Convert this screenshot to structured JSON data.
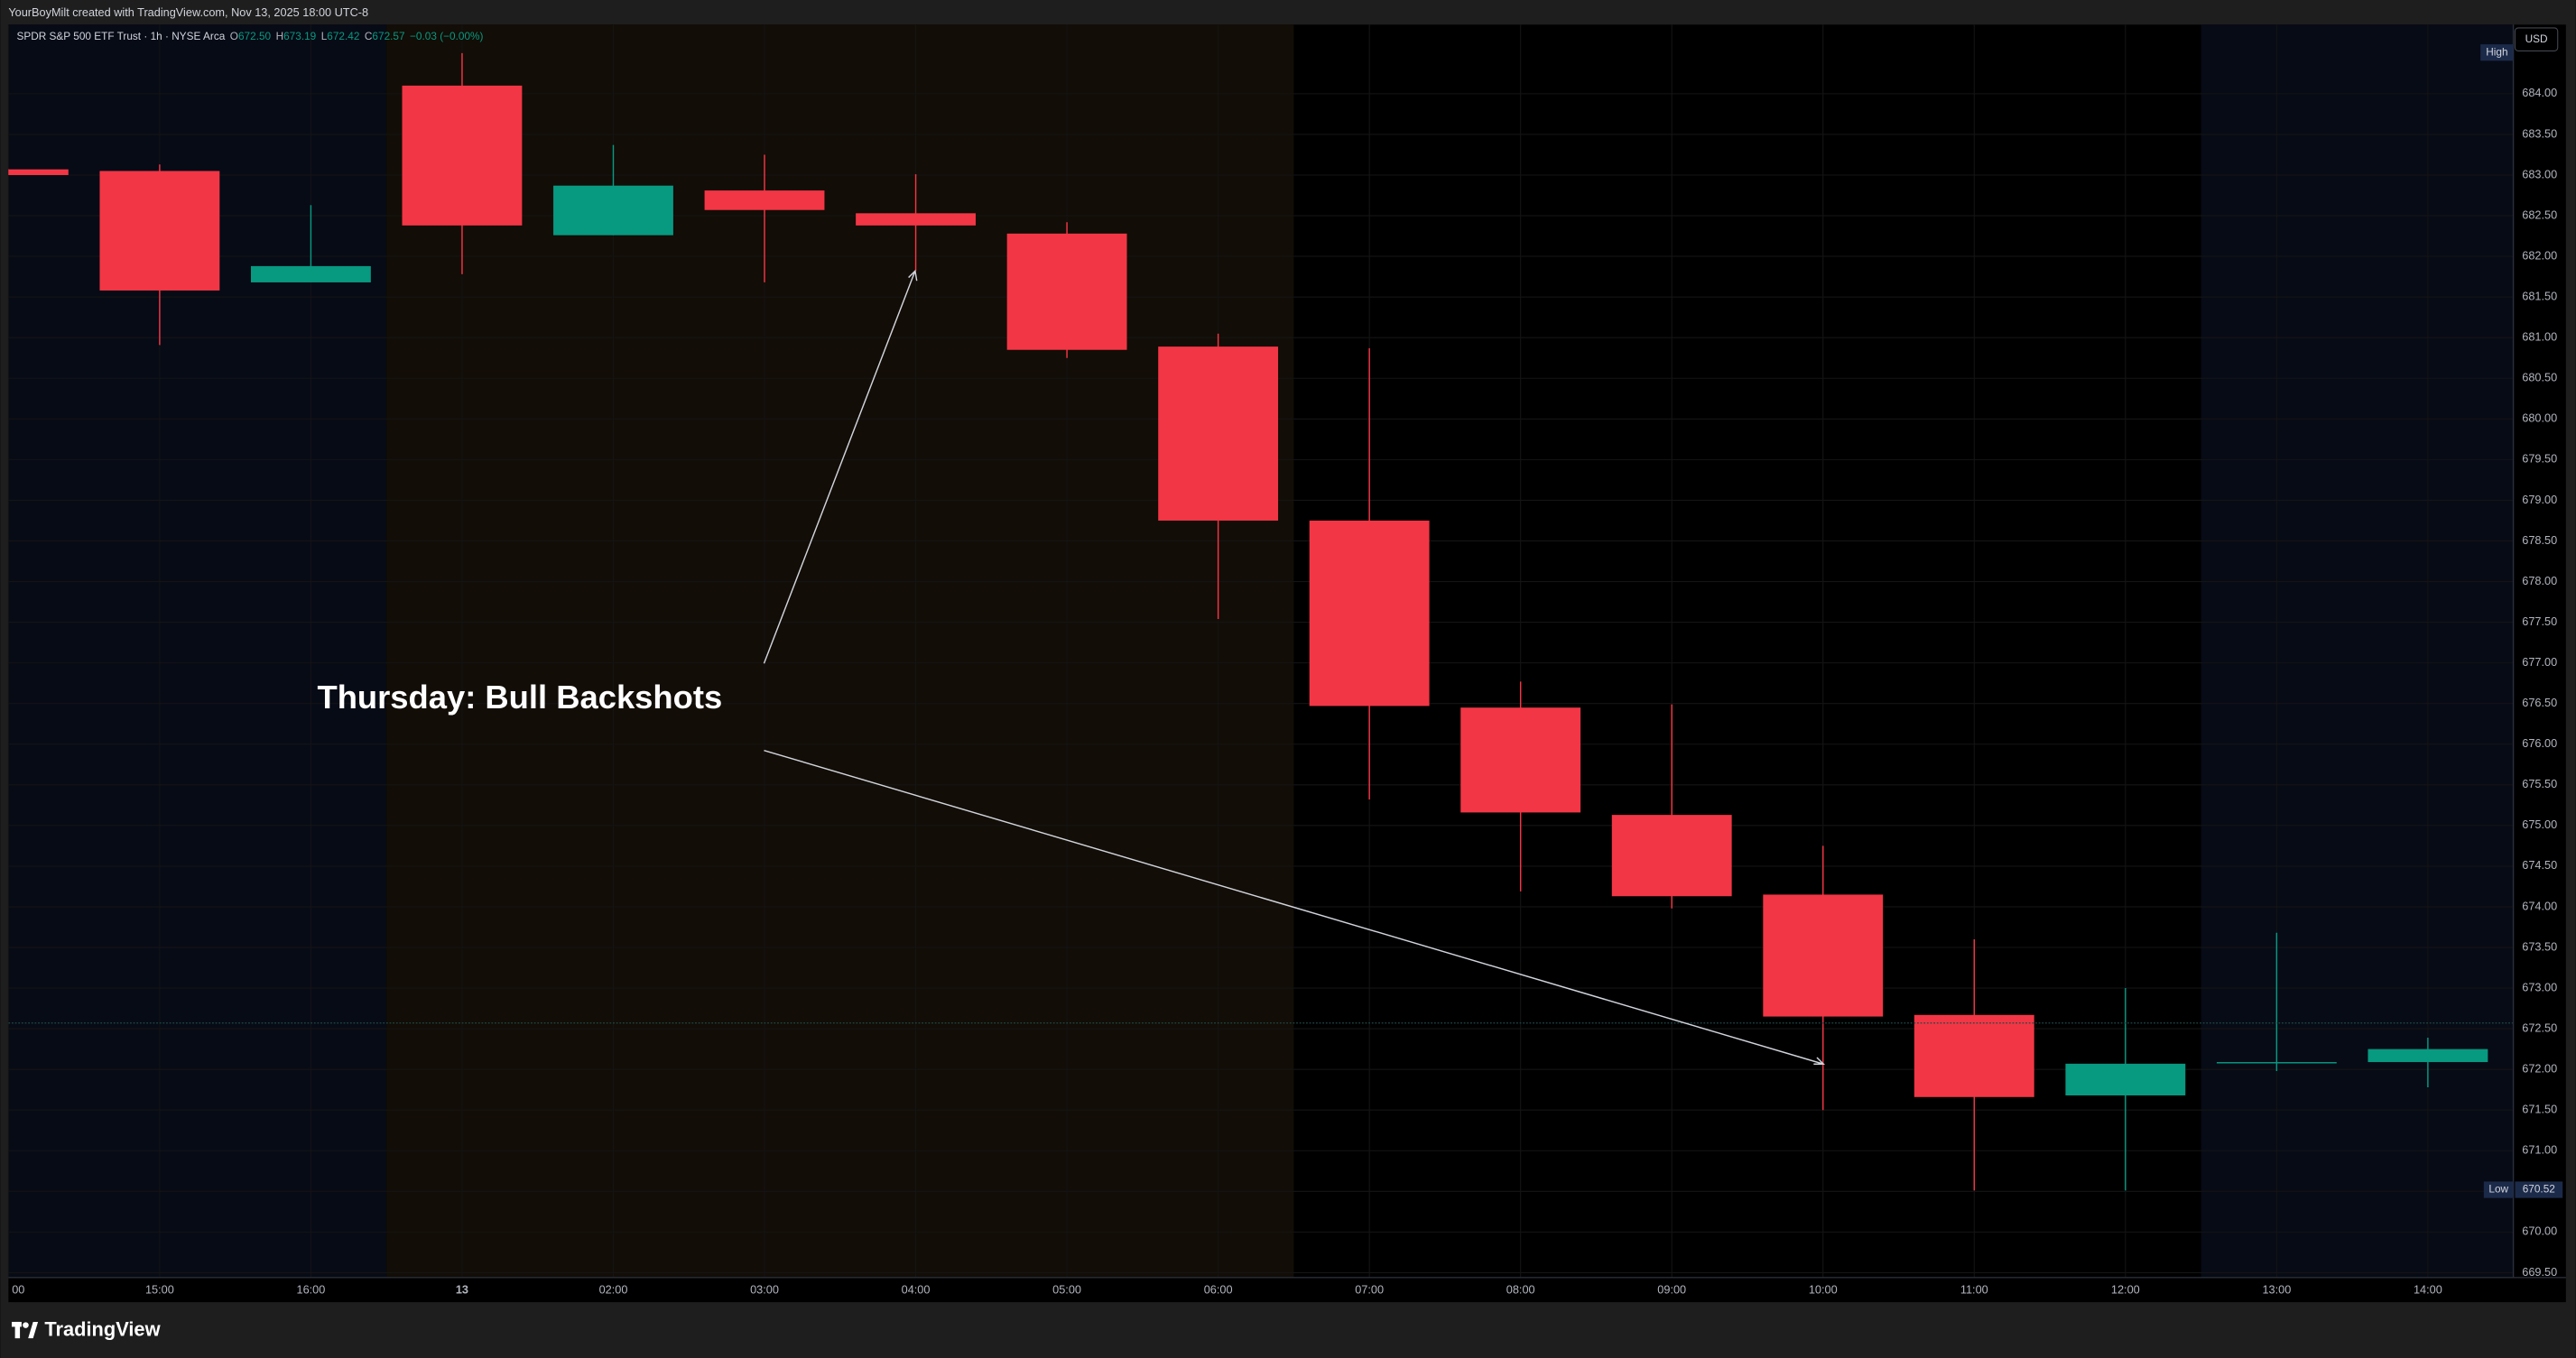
{
  "top_bar": "YourBoyMilt created with TradingView.com, Nov 13, 2025 18:00 UTC-8",
  "legend": {
    "symbol": "SPDR S&P 500 ETF Trust · 1h · NYSE Arca",
    "o_label": "O",
    "o": "672.50",
    "h_label": "H",
    "h": "673.19",
    "l_label": "L",
    "l": "672.42",
    "c_label": "C",
    "c": "672.57",
    "change": "−0.03 (−0.00%)"
  },
  "currency": "USD",
  "brand": "TradingView",
  "chart_data": {
    "type": "candlestick",
    "annotation": "Thursday: Bull Backshots",
    "categories": [
      "00",
      "15:00",
      "16:00",
      "13",
      "02:00",
      "03:00",
      "04:00",
      "05:00",
      "06:00",
      "07:00",
      "08:00",
      "09:00",
      "10:00",
      "11:00",
      "12:00",
      "13:00",
      "14:00"
    ],
    "open": [
      683.07,
      683.05,
      681.68,
      684.1,
      682.26,
      682.81,
      682.53,
      682.28,
      680.89,
      678.75,
      676.45,
      675.13,
      674.15,
      672.67,
      671.68,
      672.09,
      672.09
    ],
    "high": [
      683.07,
      683.13,
      682.63,
      684.5,
      683.37,
      683.25,
      683.01,
      682.42,
      681.05,
      680.87,
      676.77,
      676.49,
      674.75,
      673.6,
      673.0,
      673.68,
      672.39
    ],
    "low": [
      683.0,
      680.91,
      681.68,
      681.78,
      682.26,
      681.68,
      681.82,
      680.75,
      677.54,
      675.32,
      674.19,
      673.98,
      671.5,
      670.51,
      670.51,
      671.98,
      671.78
    ],
    "close": [
      683.0,
      681.58,
      681.88,
      682.38,
      682.87,
      682.57,
      682.38,
      680.85,
      678.75,
      676.47,
      675.16,
      674.13,
      672.65,
      671.66,
      672.07,
      672.09,
      672.25
    ],
    "up_color": "#089981",
    "down_color": "#f23645",
    "grid": true,
    "ylim": [
      669.44,
      684.85
    ],
    "yticks": [
      {
        "value": 669.5,
        "label": "669.50"
      },
      {
        "value": 670,
        "label": "670.00"
      },
      {
        "value": 670.5,
        "label": "670.50"
      },
      {
        "value": 671,
        "label": "671.00"
      },
      {
        "value": 671.5,
        "label": "671.50"
      },
      {
        "value": 672,
        "label": "672.00"
      },
      {
        "value": 672.5,
        "label": "672.50"
      },
      {
        "value": 673,
        "label": "673.00"
      },
      {
        "value": 673.5,
        "label": "673.50"
      },
      {
        "value": 674,
        "label": "674.00"
      },
      {
        "value": 674.5,
        "label": "674.50"
      },
      {
        "value": 675,
        "label": "675.00"
      },
      {
        "value": 675.5,
        "label": "675.50"
      },
      {
        "value": 676,
        "label": "676.00"
      },
      {
        "value": 676.5,
        "label": "676.50"
      },
      {
        "value": 677,
        "label": "677.00"
      },
      {
        "value": 677.5,
        "label": "677.50"
      },
      {
        "value": 678,
        "label": "678.00"
      },
      {
        "value": 678.5,
        "label": "678.50"
      },
      {
        "value": 679,
        "label": "679.00"
      },
      {
        "value": 679.5,
        "label": "679.50"
      },
      {
        "value": 680,
        "label": "680.00"
      },
      {
        "value": 680.5,
        "label": "680.50"
      },
      {
        "value": 681,
        "label": "681.00"
      },
      {
        "value": 681.5,
        "label": "681.50"
      },
      {
        "value": 682,
        "label": "682.00"
      },
      {
        "value": 682.5,
        "label": "682.50"
      },
      {
        "value": 683,
        "label": "683.00"
      },
      {
        "value": 683.5,
        "label": "683.50"
      },
      {
        "value": 684,
        "label": "684.00"
      }
    ],
    "price_line": 672.57,
    "high_label": "High",
    "low_label": "Low",
    "low_value": 670.52
  }
}
